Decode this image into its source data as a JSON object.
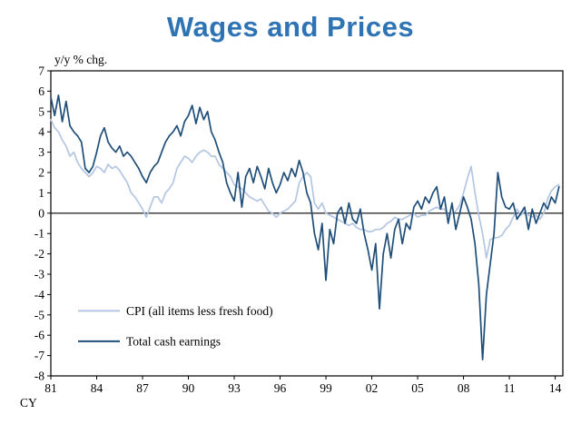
{
  "title": "Wages and Prices",
  "colors": {
    "title": "#2e74b5",
    "axis": "#000000",
    "background": "#ffffff",
    "cpi_line": "#b3c6e2",
    "earnings_line": "#1f4e79"
  },
  "chart_data": {
    "type": "line",
    "title": "Wages and Prices",
    "unit_note": "y/y % chg.",
    "x_axis_prefix": "CY",
    "ylim": [
      -8,
      7
    ],
    "xlim": [
      1981,
      2014.5
    ],
    "y_ticks": [
      7,
      6,
      5,
      4,
      3,
      2,
      1,
      0,
      -1,
      -2,
      -3,
      -4,
      -5,
      -6,
      -7,
      -8
    ],
    "x_ticks": [
      {
        "x": 1981,
        "label": "81"
      },
      {
        "x": 1984,
        "label": "84"
      },
      {
        "x": 1987,
        "label": "87"
      },
      {
        "x": 1990,
        "label": "90"
      },
      {
        "x": 1993,
        "label": "93"
      },
      {
        "x": 1996,
        "label": "96"
      },
      {
        "x": 1999,
        "label": "99"
      },
      {
        "x": 2002,
        "label": "02"
      },
      {
        "x": 2005,
        "label": "05"
      },
      {
        "x": 2008,
        "label": "08"
      },
      {
        "x": 2011,
        "label": "11"
      },
      {
        "x": 2014,
        "label": "14"
      }
    ],
    "x_start": 1981.0,
    "x_step": 0.25,
    "legend_position": "lower-left",
    "grid": false,
    "series": [
      {
        "name": "CPI (all items less fresh food)",
        "color": "#b3c6e2",
        "values": [
          4.6,
          4.2,
          4.0,
          3.6,
          3.3,
          2.8,
          3.0,
          2.5,
          2.2,
          2.0,
          1.8,
          2.0,
          2.3,
          2.2,
          2.0,
          2.4,
          2.2,
          2.3,
          2.1,
          1.8,
          1.5,
          1.0,
          0.8,
          0.5,
          0.2,
          -0.2,
          0.3,
          0.8,
          0.8,
          0.5,
          1.0,
          1.2,
          1.5,
          2.2,
          2.5,
          2.8,
          2.7,
          2.5,
          2.8,
          3.0,
          3.1,
          3.0,
          2.8,
          2.8,
          2.4,
          2.2,
          2.0,
          1.8,
          1.4,
          1.3,
          1.2,
          1.0,
          0.8,
          0.7,
          0.6,
          0.7,
          0.4,
          0.1,
          0.0,
          -0.2,
          0.0,
          0.1,
          0.2,
          0.4,
          0.6,
          1.5,
          1.8,
          2.0,
          1.8,
          0.5,
          0.2,
          0.5,
          0.0,
          -0.1,
          -0.2,
          -0.3,
          -0.4,
          -0.5,
          -0.6,
          -0.5,
          -0.7,
          -0.8,
          -0.8,
          -0.9,
          -0.9,
          -0.8,
          -0.8,
          -0.7,
          -0.5,
          -0.4,
          -0.2,
          -0.3,
          -0.3,
          -0.2,
          -0.1,
          0.0,
          -0.2,
          -0.1,
          -0.1,
          0.1,
          0.2,
          0.3,
          0.2,
          0.2,
          -0.1,
          0.0,
          0.1,
          0.4,
          1.0,
          1.7,
          2.3,
          1.0,
          -0.1,
          -1.0,
          -2.2,
          -1.3,
          -1.2,
          -1.2,
          -1.1,
          -0.8,
          -0.6,
          -0.2,
          0.2,
          -0.1,
          0.1,
          -0.1,
          -0.2,
          -0.1,
          -0.3,
          0.0,
          0.7,
          1.1,
          1.3,
          1.4
        ]
      },
      {
        "name": "Total cash earnings",
        "color": "#1f4e79",
        "values": [
          5.7,
          4.8,
          5.8,
          4.5,
          5.5,
          4.3,
          4.0,
          3.8,
          3.5,
          2.2,
          2.0,
          2.3,
          3.0,
          3.8,
          4.2,
          3.5,
          3.2,
          3.0,
          3.3,
          2.8,
          3.0,
          2.8,
          2.5,
          2.2,
          1.8,
          1.5,
          2.0,
          2.3,
          2.5,
          3.0,
          3.5,
          3.8,
          4.0,
          4.3,
          3.8,
          4.5,
          4.8,
          5.3,
          4.4,
          5.2,
          4.6,
          5.0,
          4.0,
          3.6,
          3.0,
          2.5,
          1.5,
          1.0,
          0.6,
          2.0,
          0.3,
          1.8,
          2.2,
          1.5,
          2.3,
          1.8,
          1.2,
          2.2,
          1.5,
          1.0,
          1.4,
          2.0,
          1.6,
          2.2,
          1.8,
          2.6,
          2.0,
          1.0,
          0.5,
          -1.0,
          -1.8,
          -0.5,
          -3.3,
          -0.8,
          -1.5,
          0.0,
          0.3,
          -0.5,
          0.5,
          -0.3,
          -0.5,
          0.2,
          -1.0,
          -1.8,
          -2.8,
          -1.5,
          -4.7,
          -2.0,
          -1.0,
          -2.2,
          -0.8,
          -0.3,
          -1.5,
          -0.5,
          -0.8,
          0.3,
          0.6,
          0.2,
          0.8,
          0.5,
          1.0,
          1.3,
          0.2,
          0.8,
          -0.5,
          0.5,
          -0.8,
          0.0,
          0.8,
          0.3,
          -0.3,
          -1.5,
          -3.5,
          -7.2,
          -4.0,
          -2.5,
          -1.0,
          2.0,
          0.8,
          0.3,
          0.2,
          0.5,
          -0.3,
          0.0,
          0.3,
          -0.8,
          0.2,
          -0.5,
          0.0,
          0.5,
          0.2,
          0.8,
          0.5,
          1.3
        ]
      }
    ]
  }
}
